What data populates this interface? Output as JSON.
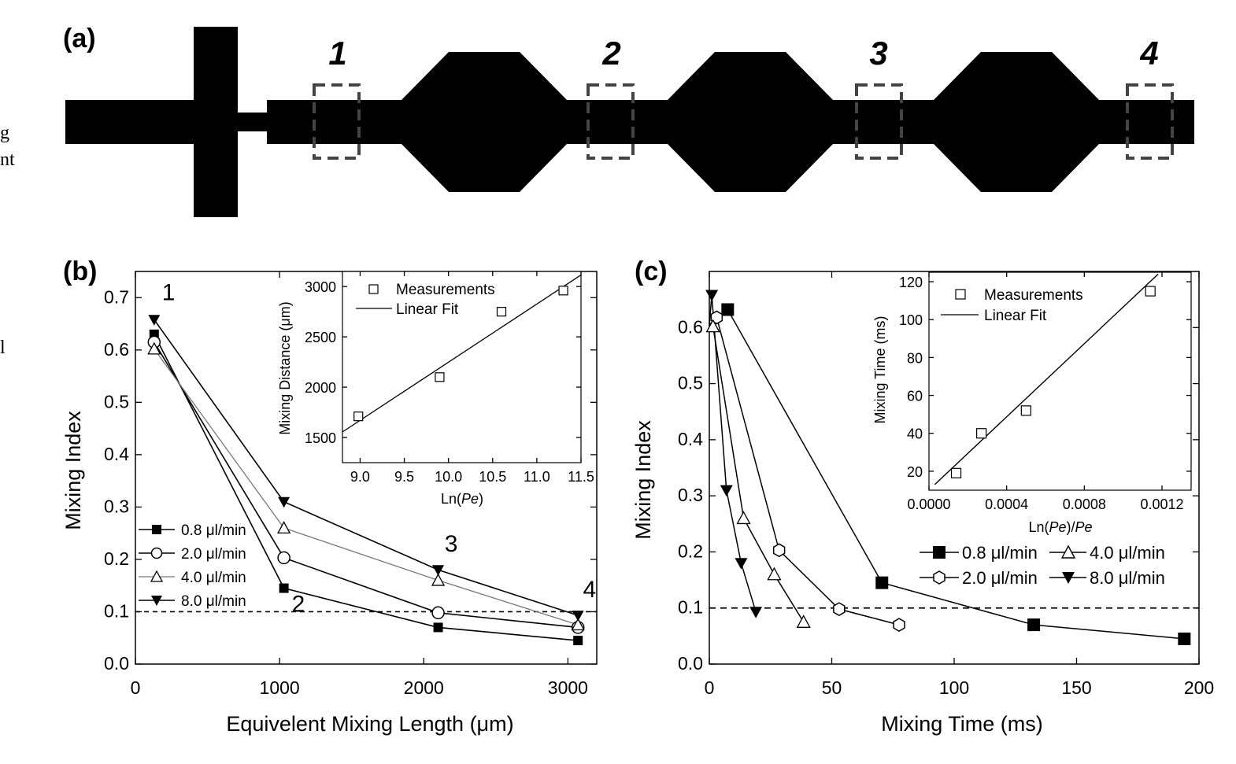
{
  "edge_text": [
    "g",
    "nt",
    "l"
  ],
  "panel_a": {
    "label": "(a)",
    "sections": [
      "1",
      "2",
      "3",
      "4"
    ]
  },
  "chart_data": [
    {
      "id": "b",
      "type": "line",
      "panel_label": "(b)",
      "xlabel": "Equivelent Mixing Length (μm)",
      "ylabel": "Mixing Index",
      "xlim": [
        0,
        3200
      ],
      "ylim": [
        0.0,
        0.75
      ],
      "xticks": [
        "0",
        "1000",
        "2000",
        "3000"
      ],
      "yticks": [
        "0.0",
        "0.1",
        "0.2",
        "0.3",
        "0.4",
        "0.5",
        "0.6",
        "0.7"
      ],
      "threshold": 0.1,
      "grid": false,
      "legend_position": "lower-left",
      "series": [
        {
          "name": "0.8 μl/min",
          "marker": "square-filled",
          "x": [
            130,
            1030,
            2100,
            3070
          ],
          "y": [
            0.63,
            0.145,
            0.07,
            0.045
          ]
        },
        {
          "name": "2.0 μl/min",
          "marker": "circle-open",
          "x": [
            130,
            1030,
            2100,
            3070
          ],
          "y": [
            0.615,
            0.203,
            0.098,
            0.07
          ]
        },
        {
          "name": "4.0 μl/min",
          "marker": "triangle-open",
          "x": [
            130,
            1030,
            2100,
            3070
          ],
          "y": [
            0.602,
            0.26,
            0.16,
            0.075
          ]
        },
        {
          "name": "8.0 μl/min",
          "marker": "triangle-down-filled",
          "x": [
            130,
            1030,
            2100,
            3070
          ],
          "y": [
            0.658,
            0.31,
            0.18,
            0.093
          ]
        }
      ],
      "annotations": [
        {
          "text": "1",
          "x": 230,
          "y": 0.695
        },
        {
          "text": "2",
          "x": 1130,
          "y": 0.1
        },
        {
          "text": "3",
          "x": 2190,
          "y": 0.215
        },
        {
          "text": "4",
          "x": 3150,
          "y": 0.128
        }
      ],
      "inset": {
        "type": "scatter",
        "xlabel": "Ln(Pe)",
        "ylabel": "Mixing Distance (μm)",
        "xlim": [
          8.8,
          11.5
        ],
        "ylim": [
          1250,
          3150
        ],
        "xticks": [
          "9.0",
          "9.5",
          "10.0",
          "10.5",
          "11.0",
          "11.5"
        ],
        "yticks": [
          "1500",
          "2000",
          "2500",
          "3000"
        ],
        "legend": {
          "measurements": "Measurements",
          "fit": "Linear Fit"
        },
        "measurements": {
          "x": [
            8.98,
            9.9,
            10.6,
            11.3
          ],
          "y": [
            1710,
            2100,
            2750,
            2960
          ]
        },
        "fit": {
          "x": [
            8.8,
            11.5
          ],
          "y": [
            1555,
            3115
          ]
        }
      }
    },
    {
      "id": "c",
      "type": "line",
      "panel_label": "(c)",
      "xlabel": "Mixing Time (ms)",
      "ylabel": "Mixing Index",
      "xlim": [
        0,
        200
      ],
      "ylim": [
        0.0,
        0.7
      ],
      "xticks": [
        "0",
        "50",
        "100",
        "150",
        "200"
      ],
      "yticks": [
        "0.0",
        "0.1",
        "0.2",
        "0.3",
        "0.4",
        "0.5",
        "0.6"
      ],
      "threshold": 0.1,
      "grid": false,
      "legend_position": "right",
      "series": [
        {
          "name": "0.8 μl/min",
          "marker": "square-filled",
          "x": [
            0,
            7.5,
            70.5,
            132.5,
            194
          ],
          "y": [
            0.605,
            0.632,
            0.145,
            0.07,
            0.045
          ]
        },
        {
          "name": "2.0 μl/min",
          "marker": "circle-open",
          "x": [
            0,
            3,
            28.5,
            53,
            77.5
          ],
          "y": [
            0.605,
            0.618,
            0.203,
            0.098,
            0.07
          ]
        },
        {
          "name": "4.0 μl/min",
          "marker": "triangle-open",
          "x": [
            0,
            1.5,
            14,
            26.5,
            38.5
          ],
          "y": [
            0.605,
            0.602,
            0.26,
            0.16,
            0.075
          ]
        },
        {
          "name": "8.0 μl/min",
          "marker": "triangle-down-filled",
          "x": [
            0,
            1,
            7,
            13,
            19
          ],
          "y": [
            0.605,
            0.658,
            0.31,
            0.18,
            0.093
          ]
        }
      ],
      "inset": {
        "type": "scatter",
        "xlabel": "Ln(Pe)/Pe",
        "ylabel": "Mixing Time (ms)",
        "xlim": [
          0.0,
          0.00135
        ],
        "ylim": [
          10,
          125
        ],
        "xticks": [
          "0.0000",
          "0.0004",
          "0.0008",
          "0.0012"
        ],
        "yticks": [
          "20",
          "40",
          "60",
          "80",
          "100",
          "120"
        ],
        "legend": {
          "measurements": "Measurements",
          "fit": "Linear Fit"
        },
        "measurements": {
          "x": [
            0.00014,
            0.00027,
            0.0005,
            0.00114
          ],
          "y": [
            19,
            40,
            52,
            115
          ]
        },
        "fit": {
          "x": [
            3e-05,
            0.00118
          ],
          "y": [
            13,
            124
          ]
        }
      }
    }
  ]
}
